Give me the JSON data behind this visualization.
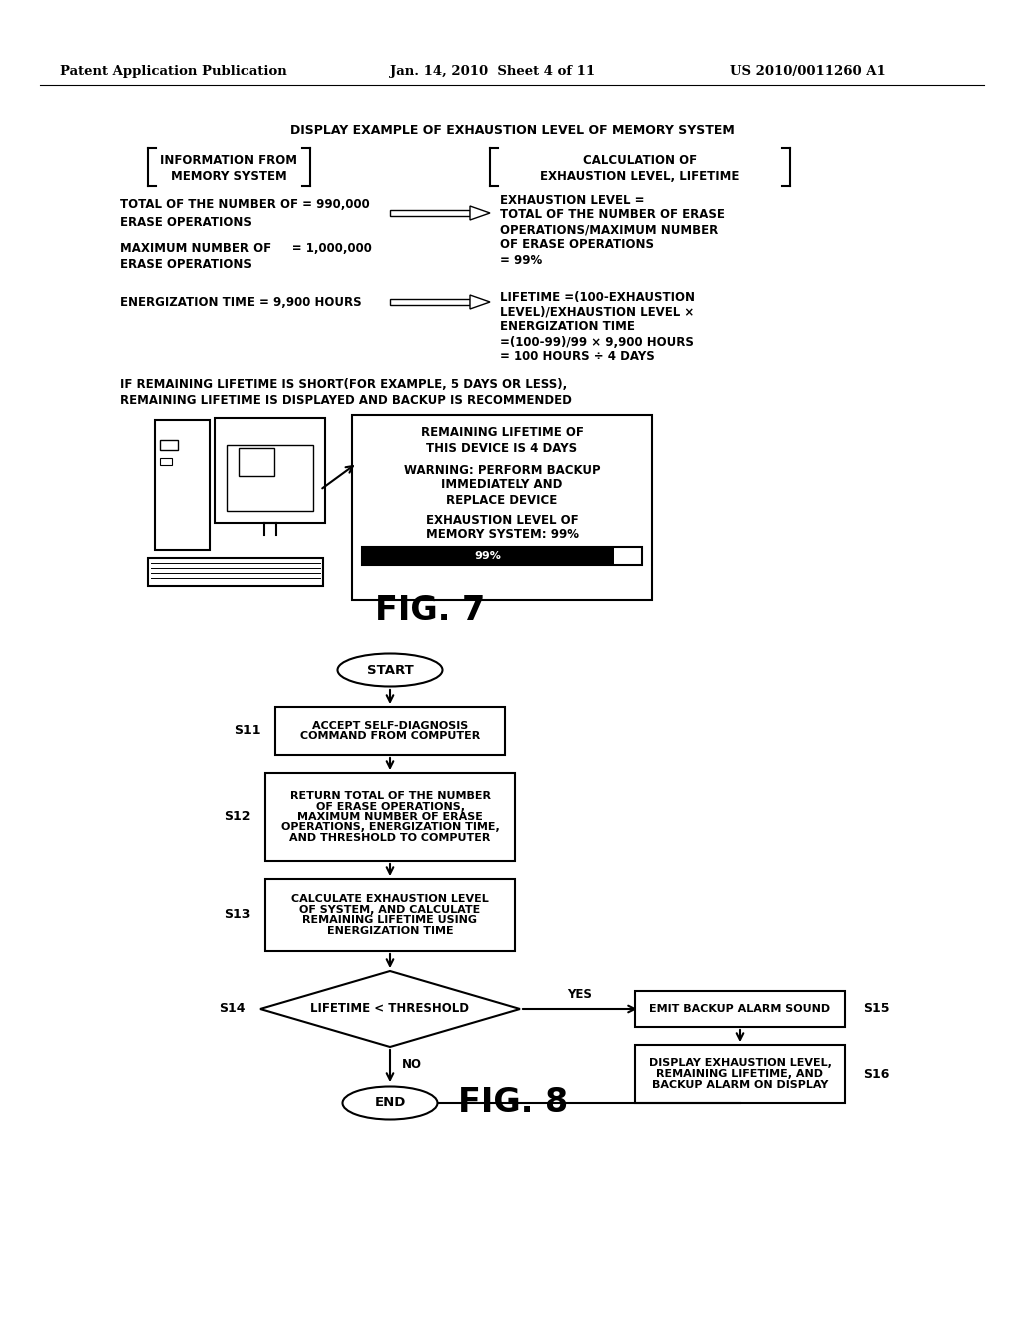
{
  "bg_color": "#ffffff",
  "header_left": "Patent Application Publication",
  "header_mid": "Jan. 14, 2010  Sheet 4 of 11",
  "header_right": "US 2010/0011260 A1",
  "fig7_title": "DISPLAY EXAMPLE OF EXHAUSTION LEVEL OF MEMORY SYSTEM",
  "fig7_label": "FIG. 7",
  "fig8_label": "FIG. 8",
  "box_s11": "ACCEPT SELF-DIAGNOSIS\nCOMMAND FROM COMPUTER",
  "box_s12": "RETURN TOTAL OF THE NUMBER\nOF ERASE OPERATIONS,\nMAXIMUM NUMBER OF ERASE\nOPERATIONS, ENERGIZATION TIME,\nAND THRESHOLD TO COMPUTER",
  "box_s13": "CALCULATE EXHAUSTION LEVEL\nOF SYSTEM, AND CALCULATE\nREMAINING LIFETIME USING\nENERGIZATION TIME",
  "diamond_s14": "LIFETIME < THRESHOLD",
  "box_s15": "EMIT BACKUP ALARM SOUND",
  "box_s16": "DISPLAY EXHAUSTION LEVEL,\nREMAINING LIFETIME, AND\nBACKUP ALARM ON DISPLAY",
  "flowchart_start": "START",
  "flowchart_end": "END",
  "s11_label": "S11",
  "s12_label": "S12",
  "s13_label": "S13",
  "s14_label": "S14",
  "s15_label": "S15",
  "s16_label": "S16",
  "yes_label": "YES",
  "no_label": "NO"
}
